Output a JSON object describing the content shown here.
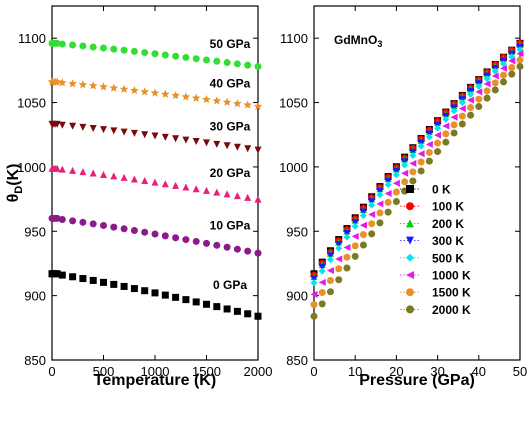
{
  "chart_data": [
    {
      "type": "scatter",
      "title": "",
      "xlabel": "Temperature (K)",
      "ylabel_main": "θ",
      "ylabel_sub": "D",
      "ylabel_unit": "(K)",
      "xlim": [
        0,
        2000
      ],
      "ylim": [
        850,
        1125
      ],
      "xticks": [
        0,
        500,
        1000,
        1500,
        2000
      ],
      "yticks": [
        850,
        900,
        950,
        1000,
        1050,
        1100
      ],
      "series": [
        {
          "name": "0 GPa",
          "color": "#000000",
          "marker": "square",
          "y_start": 917,
          "y_end": 884
        },
        {
          "name": "10 GPa",
          "color": "#8b1a8b",
          "marker": "circle",
          "y_start": 960,
          "y_end": 933
        },
        {
          "name": "20 GPa",
          "color": "#e8207a",
          "marker": "triangle-up",
          "y_start": 999,
          "y_end": 975
        },
        {
          "name": "30 GPa",
          "color": "#7a0a0a",
          "marker": "triangle-down",
          "y_start": 1033,
          "y_end": 1013
        },
        {
          "name": "40 GPa",
          "color": "#e8902a",
          "marker": "star",
          "y_start": 1066,
          "y_end": 1047
        },
        {
          "name": "50 GPa",
          "color": "#33dd33",
          "marker": "circle",
          "y_start": 1096,
          "y_end": 1078
        }
      ],
      "x": [
        0,
        100,
        200,
        300,
        400,
        500,
        600,
        700,
        800,
        900,
        1000,
        1100,
        1200,
        1300,
        1400,
        1500,
        1600,
        1700,
        1800,
        1900,
        2000
      ]
    },
    {
      "type": "scatter",
      "title": "",
      "annotation_main": "GdMnO",
      "annotation_sub": "3",
      "xlabel": "Pressure (GPa)",
      "xlim": [
        0,
        50
      ],
      "ylim": [
        850,
        1125
      ],
      "xticks": [
        0,
        10,
        20,
        30,
        40,
        50
      ],
      "yticks": [
        850,
        900,
        950,
        1000,
        1050,
        1100
      ],
      "legend_position": "bottom-right",
      "x": [
        0,
        2,
        4,
        6,
        8,
        10,
        12,
        14,
        16,
        18,
        20,
        22,
        24,
        26,
        28,
        30,
        32,
        34,
        36,
        38,
        40,
        42,
        44,
        46,
        48,
        50
      ],
      "series": [
        {
          "name": "0 K",
          "color": "#000000",
          "marker": "square",
          "y0": 917,
          "y50": 1096,
          "curv": 12
        },
        {
          "name": "100 K",
          "color": "#ff0000",
          "marker": "circle",
          "y0": 916,
          "y50": 1096,
          "curv": 12
        },
        {
          "name": "200 K",
          "color": "#00cc00",
          "marker": "triangle-up",
          "y0": 915,
          "y50": 1095,
          "curv": 12
        },
        {
          "name": "300 K",
          "color": "#1a1aff",
          "marker": "triangle-down",
          "y0": 913,
          "y50": 1093,
          "curv": 12
        },
        {
          "name": "500 K",
          "color": "#00e5ee",
          "marker": "diamond",
          "y0": 910,
          "y50": 1091,
          "curv": 12
        },
        {
          "name": "1000 K",
          "color": "#e619e6",
          "marker": "triangle-left",
          "y0": 901,
          "y50": 1088,
          "curv": 12
        },
        {
          "name": "1500 K",
          "color": "#e8902a",
          "marker": "circle",
          "y0": 893,
          "y50": 1083,
          "curv": 12
        },
        {
          "name": "2000 K",
          "color": "#7a7a20",
          "marker": "circle",
          "y0": 884,
          "y50": 1078,
          "curv": 12
        }
      ]
    }
  ]
}
